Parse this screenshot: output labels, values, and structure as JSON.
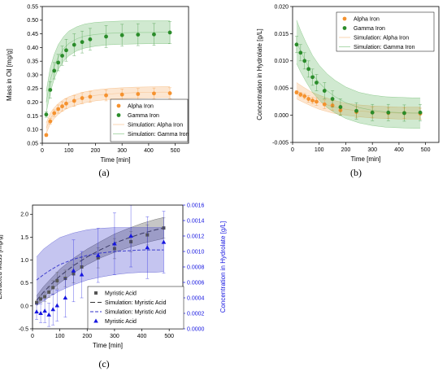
{
  "chart_data": [
    {
      "type": "scatter",
      "panel_label": "(a)",
      "xlabel": "Time [min]",
      "ylabel": "Mass in Oil [mg/g]",
      "xlim": [
        0,
        550
      ],
      "ylim": [
        0.05,
        0.55
      ],
      "xticks": [
        0,
        100,
        200,
        300,
        400,
        500
      ],
      "yticks": [
        0.05,
        0.1,
        0.15,
        0.2,
        0.25,
        0.3,
        0.35,
        0.4,
        0.45,
        0.5,
        0.55
      ],
      "ytick_labels": [
        "0.05",
        "0.10",
        "0.15",
        "0.20",
        "0.25",
        "0.30",
        "0.35",
        "0.40",
        "0.45",
        "0.50",
        "0.55"
      ],
      "legend_position": "bottom-right",
      "legend": [
        "Alpha Iron",
        "Gamma Iron",
        "Simulation: Alpha Iron",
        "Simulation: Gamma Iron"
      ],
      "series": [
        {
          "name": "Alpha Iron",
          "kind": "points",
          "color": "#f5922f",
          "x": [
            15,
            30,
            45,
            60,
            75,
            90,
            120,
            150,
            180,
            240,
            300,
            360,
            420,
            480
          ],
          "y": [
            0.08,
            0.13,
            0.16,
            0.175,
            0.185,
            0.195,
            0.205,
            0.215,
            0.22,
            0.225,
            0.228,
            0.23,
            0.232,
            0.233
          ],
          "err": [
            0.005,
            0.01,
            0.012,
            0.015,
            0.017,
            0.018,
            0.02,
            0.02,
            0.02,
            0.02,
            0.02,
            0.02,
            0.02,
            0.02
          ]
        },
        {
          "name": "Gamma Iron",
          "kind": "points",
          "color": "#2a8c2a",
          "x": [
            15,
            30,
            45,
            60,
            75,
            90,
            120,
            150,
            180,
            240,
            300,
            360,
            420,
            480
          ],
          "y": [
            0.155,
            0.245,
            0.315,
            0.345,
            0.37,
            0.39,
            0.41,
            0.42,
            0.43,
            0.44,
            0.445,
            0.447,
            0.448,
            0.455
          ],
          "err": [
            0.01,
            0.03,
            0.03,
            0.03,
            0.035,
            0.04,
            0.04,
            0.04,
            0.04,
            0.04,
            0.04,
            0.04,
            0.04,
            0.04
          ]
        },
        {
          "name": "Simulation: Alpha Iron",
          "kind": "band",
          "color": "#f5a65a",
          "x": [
            15,
            30,
            45,
            60,
            80,
            100,
            130,
            160,
            200,
            250,
            300,
            350,
            400,
            450,
            480
          ],
          "y": [
            0.105,
            0.14,
            0.16,
            0.175,
            0.19,
            0.2,
            0.21,
            0.218,
            0.225,
            0.23,
            0.233,
            0.235,
            0.236,
            0.237,
            0.237
          ],
          "lower": [
            0.085,
            0.12,
            0.14,
            0.155,
            0.17,
            0.18,
            0.19,
            0.198,
            0.205,
            0.21,
            0.213,
            0.215,
            0.216,
            0.217,
            0.217
          ],
          "upper": [
            0.125,
            0.16,
            0.18,
            0.195,
            0.21,
            0.22,
            0.23,
            0.238,
            0.245,
            0.25,
            0.253,
            0.255,
            0.256,
            0.257,
            0.257
          ]
        },
        {
          "name": "Simulation: Gamma Iron",
          "kind": "band",
          "color": "#55b055",
          "x": [
            15,
            30,
            45,
            60,
            80,
            100,
            130,
            160,
            200,
            250,
            300,
            350,
            400,
            450,
            480
          ],
          "y": [
            0.2,
            0.28,
            0.33,
            0.365,
            0.395,
            0.415,
            0.432,
            0.442,
            0.448,
            0.452,
            0.454,
            0.455,
            0.455,
            0.456,
            0.456
          ],
          "lower": [
            0.16,
            0.235,
            0.285,
            0.32,
            0.35,
            0.37,
            0.388,
            0.398,
            0.405,
            0.41,
            0.412,
            0.413,
            0.414,
            0.414,
            0.414
          ],
          "upper": [
            0.24,
            0.325,
            0.375,
            0.41,
            0.44,
            0.46,
            0.476,
            0.486,
            0.492,
            0.495,
            0.497,
            0.498,
            0.498,
            0.498,
            0.498
          ]
        }
      ]
    },
    {
      "type": "scatter",
      "panel_label": "(b)",
      "xlabel": "Time [min]",
      "ylabel": "Concentration in Hydrolate [g/L]",
      "xlim": [
        0,
        550
      ],
      "ylim": [
        -0.005,
        0.02
      ],
      "xticks": [
        0,
        100,
        200,
        300,
        400,
        500
      ],
      "yticks": [
        -0.005,
        0.0,
        0.005,
        0.01,
        0.015,
        0.02
      ],
      "ytick_labels": [
        "-0.005",
        "0.000",
        "0.005",
        "0.010",
        "0.015",
        "0.020"
      ],
      "legend_position": "top-right",
      "legend": [
        "Alpha Iron",
        "Gamma Iron",
        "Simulation: Alpha Iron",
        "Simulation: Gamma Iron"
      ],
      "series": [
        {
          "name": "Alpha Iron",
          "kind": "points",
          "color": "#f5922f",
          "x": [
            15,
            30,
            45,
            60,
            75,
            90,
            120,
            150,
            180,
            240,
            300,
            360,
            420,
            480
          ],
          "y": [
            0.0042,
            0.0038,
            0.0035,
            0.003,
            0.0027,
            0.0025,
            0.002,
            0.0018,
            0.0009,
            0.0006,
            0.0005,
            0.0004,
            0.0004,
            0.0003
          ],
          "err": [
            0.0003,
            0.0004,
            0.0005,
            0.0006,
            0.0006,
            0.0007,
            0.0008,
            0.0009,
            0.0009,
            0.001,
            0.001,
            0.001,
            0.001,
            0.001
          ]
        },
        {
          "name": "Gamma Iron",
          "kind": "points",
          "color": "#2a8c2a",
          "x": [
            15,
            30,
            45,
            60,
            75,
            90,
            120,
            150,
            180,
            240,
            300,
            360,
            420,
            480
          ],
          "y": [
            0.013,
            0.0115,
            0.01,
            0.0085,
            0.007,
            0.006,
            0.0045,
            0.003,
            0.0015,
            0.0008,
            0.0005,
            0.0005,
            0.0004,
            0.0005
          ],
          "err": [
            0.0015,
            0.0015,
            0.0015,
            0.0015,
            0.0015,
            0.0015,
            0.0015,
            0.0015,
            0.0015,
            0.0015,
            0.0015,
            0.0015,
            0.0015,
            0.0015
          ]
        },
        {
          "name": "Simulation: Alpha Iron",
          "kind": "band",
          "color": "#f5a65a",
          "x": [
            15,
            40,
            70,
            100,
            150,
            200,
            250,
            300,
            350,
            400,
            450,
            480
          ],
          "y": [
            0.0045,
            0.0038,
            0.003,
            0.0024,
            0.0016,
            0.0011,
            0.0008,
            0.0006,
            0.0005,
            0.0004,
            0.0004,
            0.0004
          ],
          "lower": [
            0.003,
            0.0024,
            0.0017,
            0.0011,
            0.0004,
            0.0,
            -0.0003,
            -0.0005,
            -0.0006,
            -0.0007,
            -0.0007,
            -0.0007
          ],
          "upper": [
            0.006,
            0.0052,
            0.0043,
            0.0037,
            0.0028,
            0.0022,
            0.0019,
            0.0017,
            0.0016,
            0.0015,
            0.0015,
            0.0015
          ]
        },
        {
          "name": "Simulation: Gamma Iron",
          "kind": "band",
          "color": "#55b055",
          "x": [
            15,
            30,
            50,
            75,
            100,
            130,
            160,
            200,
            250,
            300,
            350,
            400,
            450,
            480
          ],
          "y": [
            0.0135,
            0.0118,
            0.0098,
            0.0076,
            0.006,
            0.0045,
            0.0034,
            0.0023,
            0.0014,
            0.0009,
            0.0006,
            0.0005,
            0.0004,
            0.0004
          ],
          "lower": [
            0.0095,
            0.008,
            0.0062,
            0.0042,
            0.0028,
            0.0014,
            0.0004,
            -0.0006,
            -0.0014,
            -0.0019,
            -0.0022,
            -0.0023,
            -0.0024,
            -0.0024
          ],
          "upper": [
            0.0175,
            0.0156,
            0.0134,
            0.011,
            0.0092,
            0.0076,
            0.0064,
            0.0052,
            0.0042,
            0.0037,
            0.0034,
            0.0033,
            0.0032,
            0.0032
          ]
        }
      ]
    },
    {
      "type": "scatter",
      "panel_label": "(c)",
      "xlabel": "Time [min]",
      "ylabel": "Extracted Mass [mg/g]",
      "y2label": "Concentration in Hydrolate [g/L]",
      "xlim": [
        0,
        550
      ],
      "ylim": [
        -0.5,
        2.2
      ],
      "y2lim": [
        0.0,
        0.0016
      ],
      "xticks": [
        0,
        100,
        200,
        300,
        400,
        500
      ],
      "yticks": [
        -0.5,
        0.0,
        0.5,
        1.0,
        1.5,
        2.0
      ],
      "ytick_labels": [
        "-0.5",
        "0.0",
        "0.5",
        "1.0",
        "1.5",
        "2.0"
      ],
      "y2ticks": [
        0.0,
        0.0002,
        0.0004,
        0.0006,
        0.0008,
        0.001,
        0.0012,
        0.0014,
        0.0016
      ],
      "y2tick_labels": [
        "0.0000",
        "0.0002",
        "0.0004",
        "0.0006",
        "0.0008",
        "0.0010",
        "0.0012",
        "0.0014",
        "0.0016"
      ],
      "legend_position": "bottom-right",
      "legend": [
        "Myristic Acid",
        "Simulation: Myristic Acid",
        "Simulation: Myristic Acid",
        "Myristic Acid"
      ],
      "series": [
        {
          "name": "Myristic Acid",
          "kind": "points",
          "marker": "square",
          "color": "#555555",
          "axis": "left",
          "x": [
            15,
            30,
            45,
            60,
            75,
            90,
            120,
            150,
            180,
            240,
            300,
            360,
            420,
            480
          ],
          "y": [
            0.07,
            0.15,
            0.2,
            0.3,
            0.4,
            0.55,
            0.6,
            0.7,
            0.85,
            1.05,
            1.25,
            1.4,
            1.55,
            1.7
          ],
          "err": [
            0.05,
            0.08,
            0.1,
            0.12,
            0.15,
            0.18,
            0.18,
            0.2,
            0.2,
            0.22,
            0.22,
            0.22,
            0.22,
            0.22
          ]
        },
        {
          "name": "Simulation: Myristic Acid",
          "kind": "band",
          "dash": "long",
          "color": "#333333",
          "axis": "left",
          "x": [
            15,
            40,
            70,
            100,
            150,
            200,
            250,
            300,
            350,
            400,
            450,
            480
          ],
          "y": [
            0.12,
            0.3,
            0.48,
            0.65,
            0.88,
            1.07,
            1.23,
            1.37,
            1.48,
            1.58,
            1.66,
            1.7
          ],
          "lower": [
            0.02,
            0.18,
            0.35,
            0.5,
            0.72,
            0.9,
            1.05,
            1.17,
            1.27,
            1.36,
            1.43,
            1.47
          ],
          "upper": [
            0.22,
            0.42,
            0.61,
            0.8,
            1.04,
            1.24,
            1.41,
            1.57,
            1.69,
            1.8,
            1.89,
            1.93
          ]
        },
        {
          "name": "Simulation: Myristic Acid",
          "kind": "band",
          "dash": "short",
          "color": "#3030c8",
          "axis": "right",
          "x": [
            15,
            40,
            70,
            100,
            150,
            200,
            250,
            300,
            350,
            400,
            450,
            480
          ],
          "y": [
            0.00063,
            0.0007,
            0.00077,
            0.00083,
            0.0009,
            0.00095,
            0.00098,
            0.001,
            0.00101,
            0.00102,
            0.00102,
            0.00102
          ],
          "lower": [
            0.0003,
            0.00036,
            0.00043,
            0.00049,
            0.00057,
            0.00063,
            0.00067,
            0.0007,
            0.00072,
            0.00073,
            0.00073,
            0.00074
          ],
          "upper": [
            0.00093,
            0.00103,
            0.00111,
            0.00118,
            0.00124,
            0.00128,
            0.0013,
            0.00131,
            0.00131,
            0.00131,
            0.00131,
            0.00131
          ]
        },
        {
          "name": "Myristic Acid",
          "kind": "points",
          "marker": "triangle",
          "color": "#1515e0",
          "axis": "right",
          "x": [
            15,
            30,
            45,
            60,
            75,
            90,
            120,
            150,
            180,
            240,
            300,
            360,
            420,
            480
          ],
          "y": [
            0.00022,
            0.0002,
            0.00023,
            0.00018,
            0.00025,
            0.0003,
            0.0004,
            0.00075,
            0.0007,
            0.00095,
            0.0011,
            0.0012,
            0.00105,
            0.00112
          ],
          "err": [
            0.0001,
            0.00012,
            0.00015,
            0.00015,
            0.0002,
            0.0002,
            0.00025,
            0.0004,
            0.0003,
            0.00035,
            0.0004,
            0.0004,
            0.0004,
            0.0004
          ]
        }
      ]
    }
  ]
}
